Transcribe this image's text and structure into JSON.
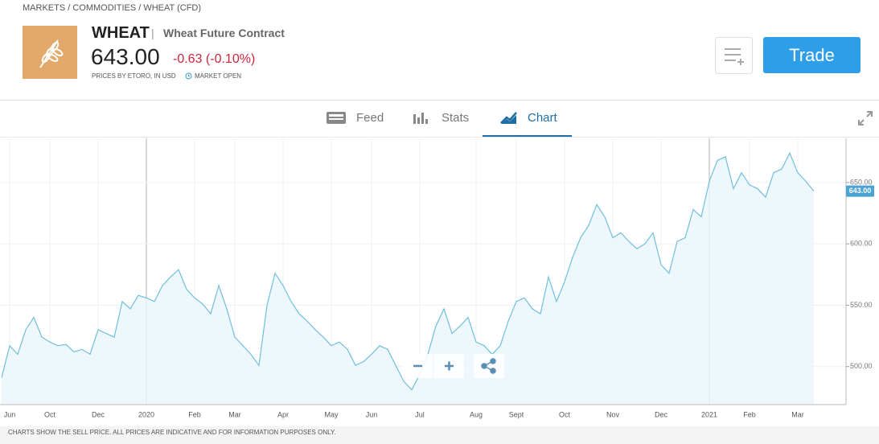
{
  "header": {
    "breadcrumb": "MARKETS / COMMODITIES / WHEAT (CFD)",
    "symbol": "WHEAT",
    "name": "Wheat Future Contract",
    "price": "643.00",
    "change": "-0.63 (-0.10%)",
    "source": "PRICES BY ETORO, IN USD",
    "status": "MARKET OPEN",
    "trade_button": "Trade"
  },
  "tabs": [
    "Feed",
    "Stats",
    "Chart"
  ],
  "footer": "CHARTS SHOW THE SELL PRICE. ALL PRICES ARE INDICATIVE AND FOR INFORMATION PURPOSES ONLY.",
  "chart_data": {
    "type": "line",
    "color": "#6fbfdc",
    "categories": [
      null,
      "Jun",
      null,
      null,
      null,
      null,
      "Oct",
      null,
      null,
      null,
      null,
      null,
      "Dec",
      null,
      null,
      null,
      null,
      null,
      "2020",
      null,
      null,
      null,
      null,
      null,
      "Feb",
      null,
      null,
      null,
      null,
      "Mar",
      null,
      null,
      null,
      null,
      null,
      "Apr",
      null,
      null,
      null,
      null,
      null,
      "May",
      null,
      null,
      null,
      null,
      "Jun",
      null,
      null,
      null,
      null,
      null,
      "Jul",
      null,
      null,
      null,
      null,
      null,
      null,
      "Aug",
      null,
      null,
      null,
      null,
      "Sept",
      null,
      null,
      null,
      null,
      null,
      "Oct",
      null,
      null,
      null,
      null,
      null,
      "Nov",
      null,
      null,
      null,
      null,
      null,
      "Dec",
      null,
      null,
      null,
      null,
      null,
      "2021",
      null,
      null,
      null,
      null,
      "Feb",
      null,
      null,
      null,
      null,
      null,
      "Mar",
      null,
      null
    ],
    "values": [
      491,
      517,
      510,
      530,
      540,
      524,
      520,
      517,
      518,
      512,
      514,
      510,
      530,
      527,
      524,
      553,
      547,
      558,
      556,
      553,
      566,
      573,
      579,
      563,
      556,
      551,
      543,
      566,
      547,
      524,
      517,
      510,
      501,
      550,
      576,
      566,
      553,
      543,
      537,
      530,
      524,
      517,
      520,
      514,
      501,
      504,
      510,
      517,
      514,
      501,
      488,
      481,
      494,
      510,
      533,
      547,
      527,
      533,
      540,
      520,
      517,
      510,
      517,
      537,
      553,
      556,
      547,
      543,
      573,
      553,
      569,
      589,
      605,
      615,
      632,
      622,
      605,
      609,
      602,
      596,
      600,
      609,
      583,
      576,
      602,
      605,
      628,
      622,
      651,
      668,
      671,
      645,
      658,
      648,
      645,
      638,
      658,
      661,
      674,
      658,
      651,
      643
    ],
    "ylim": [
      469,
      686
    ],
    "yticks": [
      {
        "value": 500,
        "label": "500.00"
      },
      {
        "value": 550,
        "label": "550.00"
      },
      {
        "value": 600,
        "label": "600.00"
      },
      {
        "value": 650,
        "label": "650.00"
      }
    ],
    "current_price": {
      "value": 643,
      "label": "643.00"
    },
    "grid": true
  }
}
